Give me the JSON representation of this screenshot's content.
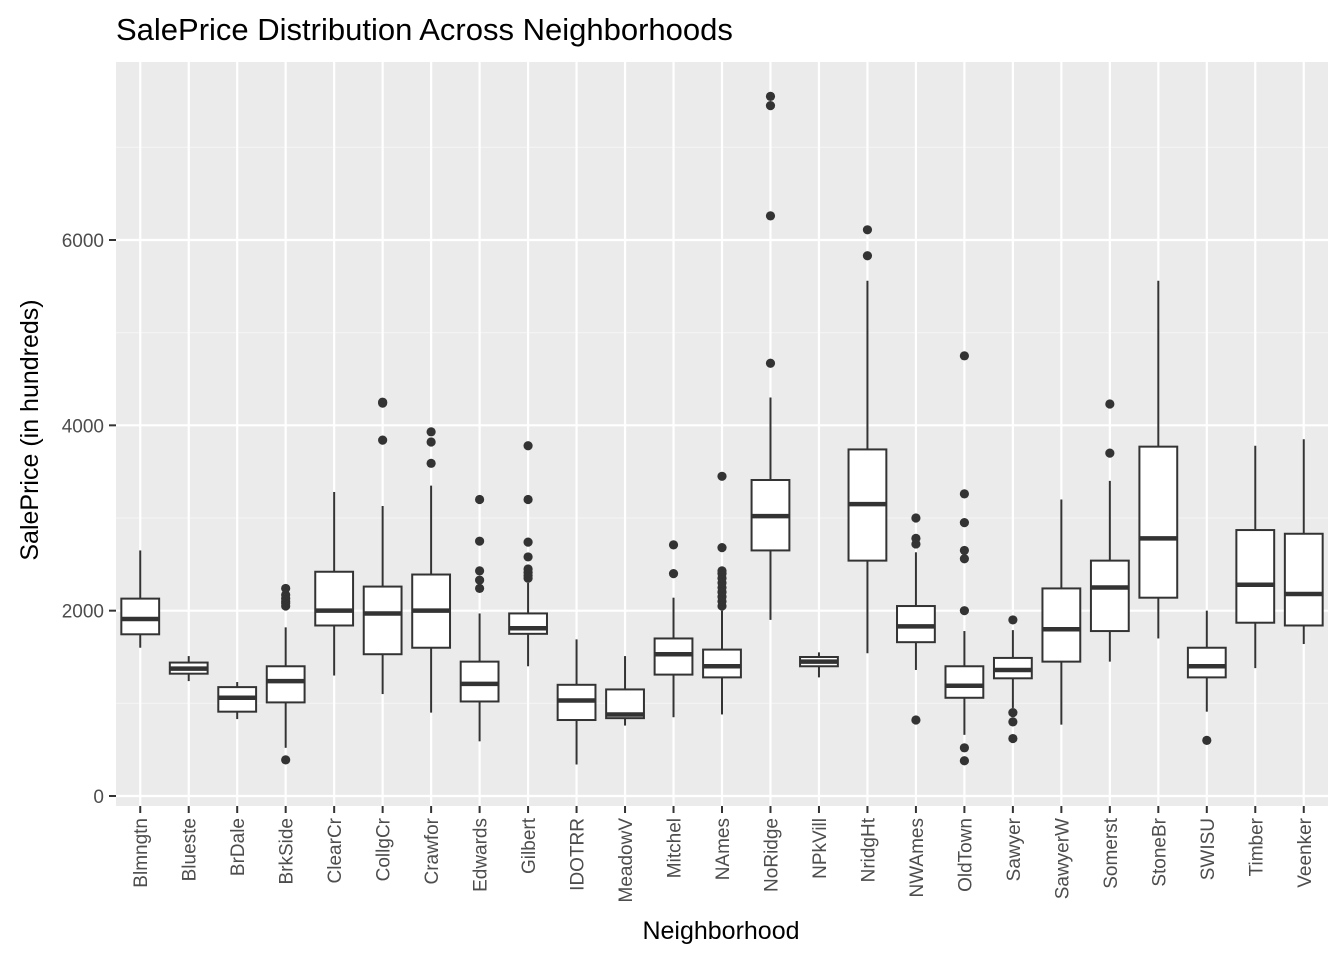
{
  "chart_data": {
    "type": "boxplot",
    "title": "SalePrice Distribution Across Neighborhoods",
    "xlabel": "Neighborhood",
    "ylabel": "SalePrice (in hundreds)",
    "ylim": [
      0,
      7700
    ],
    "yticks": [
      0,
      2000,
      4000,
      6000
    ],
    "grid": true,
    "legend": "none",
    "colors": {
      "panel": "#ebebeb",
      "grid_major": "#ffffff",
      "grid_minor": "#f4f4f4",
      "box_fill": "#ffffff",
      "box_line": "#333333",
      "outlier": "#333333",
      "tick_text": "#4d4d4d"
    },
    "categories": [
      "Blmngtn",
      "Blueste",
      "BrDale",
      "BrkSide",
      "ClearCr",
      "CollgCr",
      "Crawfor",
      "Edwards",
      "Gilbert",
      "IDOTRR",
      "MeadowV",
      "Mitchel",
      "NAmes",
      "NoRidge",
      "NPkVill",
      "NridgHt",
      "NWAmes",
      "OldTown",
      "Sawyer",
      "SawyerW",
      "Somerst",
      "StoneBr",
      "SWISU",
      "Timber",
      "Veenker"
    ],
    "boxes": [
      {
        "name": "Blmngtn",
        "lower": 1600,
        "q1": 1745,
        "median": 1910,
        "q3": 2130,
        "upper": 2650,
        "outliers": []
      },
      {
        "name": "Blueste",
        "lower": 1240,
        "q1": 1320,
        "median": 1375,
        "q3": 1440,
        "upper": 1510,
        "outliers": []
      },
      {
        "name": "BrDale",
        "lower": 830,
        "q1": 910,
        "median": 1060,
        "q3": 1175,
        "upper": 1230,
        "outliers": []
      },
      {
        "name": "BrkSide",
        "lower": 520,
        "q1": 1010,
        "median": 1240,
        "q3": 1400,
        "upper": 1820,
        "outliers": [
          390,
          2050,
          2080,
          2100,
          2130,
          2170,
          2240
        ]
      },
      {
        "name": "ClearCr",
        "lower": 1300,
        "q1": 1840,
        "median": 2000,
        "q3": 2420,
        "upper": 3280,
        "outliers": []
      },
      {
        "name": "CollgCr",
        "lower": 1100,
        "q1": 1530,
        "median": 1970,
        "q3": 2260,
        "upper": 3130,
        "outliers": [
          3840,
          4240,
          4250
        ]
      },
      {
        "name": "Crawfor",
        "lower": 900,
        "q1": 1600,
        "median": 2000,
        "q3": 2390,
        "upper": 3350,
        "outliers": [
          3590,
          3820,
          3930
        ]
      },
      {
        "name": "Edwards",
        "lower": 590,
        "q1": 1020,
        "median": 1210,
        "q3": 1450,
        "upper": 1970,
        "outliers": [
          2240,
          2330,
          2430,
          2750,
          3200
        ]
      },
      {
        "name": "Gilbert",
        "lower": 1400,
        "q1": 1750,
        "median": 1810,
        "q3": 1970,
        "upper": 2300,
        "outliers": [
          2350,
          2380,
          2410,
          2450,
          2580,
          2740,
          3200,
          3780
        ]
      },
      {
        "name": "IDOTRR",
        "lower": 340,
        "q1": 820,
        "median": 1030,
        "q3": 1200,
        "upper": 1690,
        "outliers": []
      },
      {
        "name": "MeadowV",
        "lower": 760,
        "q1": 840,
        "median": 880,
        "q3": 1150,
        "upper": 1510,
        "outliers": []
      },
      {
        "name": "Mitchel",
        "lower": 850,
        "q1": 1310,
        "median": 1530,
        "q3": 1700,
        "upper": 2140,
        "outliers": [
          2400,
          2710
        ]
      },
      {
        "name": "NAmes",
        "lower": 880,
        "q1": 1280,
        "median": 1400,
        "q3": 1580,
        "upper": 2000,
        "outliers": [
          2050,
          2100,
          2150,
          2200,
          2250,
          2300,
          2350,
          2400,
          2430,
          2680,
          3450
        ]
      },
      {
        "name": "NoRidge",
        "lower": 1900,
        "q1": 2650,
        "median": 3020,
        "q3": 3410,
        "upper": 4300,
        "outliers": [
          4670,
          6260,
          7450,
          7550
        ]
      },
      {
        "name": "NPkVill",
        "lower": 1280,
        "q1": 1400,
        "median": 1450,
        "q3": 1500,
        "upper": 1550,
        "outliers": []
      },
      {
        "name": "NridgHt",
        "lower": 1540,
        "q1": 2540,
        "median": 3150,
        "q3": 3740,
        "upper": 5560,
        "outliers": [
          5830,
          6110
        ]
      },
      {
        "name": "NWAmes",
        "lower": 1360,
        "q1": 1660,
        "median": 1830,
        "q3": 2050,
        "upper": 2630,
        "outliers": [
          820,
          2720,
          2780,
          3000
        ]
      },
      {
        "name": "OldTown",
        "lower": 660,
        "q1": 1060,
        "median": 1190,
        "q3": 1400,
        "upper": 1780,
        "outliers": [
          380,
          520,
          2000,
          2560,
          2650,
          2950,
          3260,
          4750
        ]
      },
      {
        "name": "Sawyer",
        "lower": 950,
        "q1": 1270,
        "median": 1360,
        "q3": 1490,
        "upper": 1790,
        "outliers": [
          620,
          800,
          900,
          1900
        ]
      },
      {
        "name": "SawyerW",
        "lower": 770,
        "q1": 1450,
        "median": 1800,
        "q3": 2240,
        "upper": 3200,
        "outliers": []
      },
      {
        "name": "Somerst",
        "lower": 1450,
        "q1": 1780,
        "median": 2250,
        "q3": 2540,
        "upper": 3400,
        "outliers": [
          3700,
          4230
        ]
      },
      {
        "name": "StoneBr",
        "lower": 1700,
        "q1": 2140,
        "median": 2780,
        "q3": 3770,
        "upper": 5560,
        "outliers": []
      },
      {
        "name": "SWISU",
        "lower": 910,
        "q1": 1280,
        "median": 1400,
        "q3": 1600,
        "upper": 2000,
        "outliers": [
          600
        ]
      },
      {
        "name": "Timber",
        "lower": 1380,
        "q1": 1870,
        "median": 2280,
        "q3": 2870,
        "upper": 3780,
        "outliers": []
      },
      {
        "name": "Veenker",
        "lower": 1640,
        "q1": 1840,
        "median": 2180,
        "q3": 2830,
        "upper": 3850,
        "outliers": []
      }
    ]
  }
}
